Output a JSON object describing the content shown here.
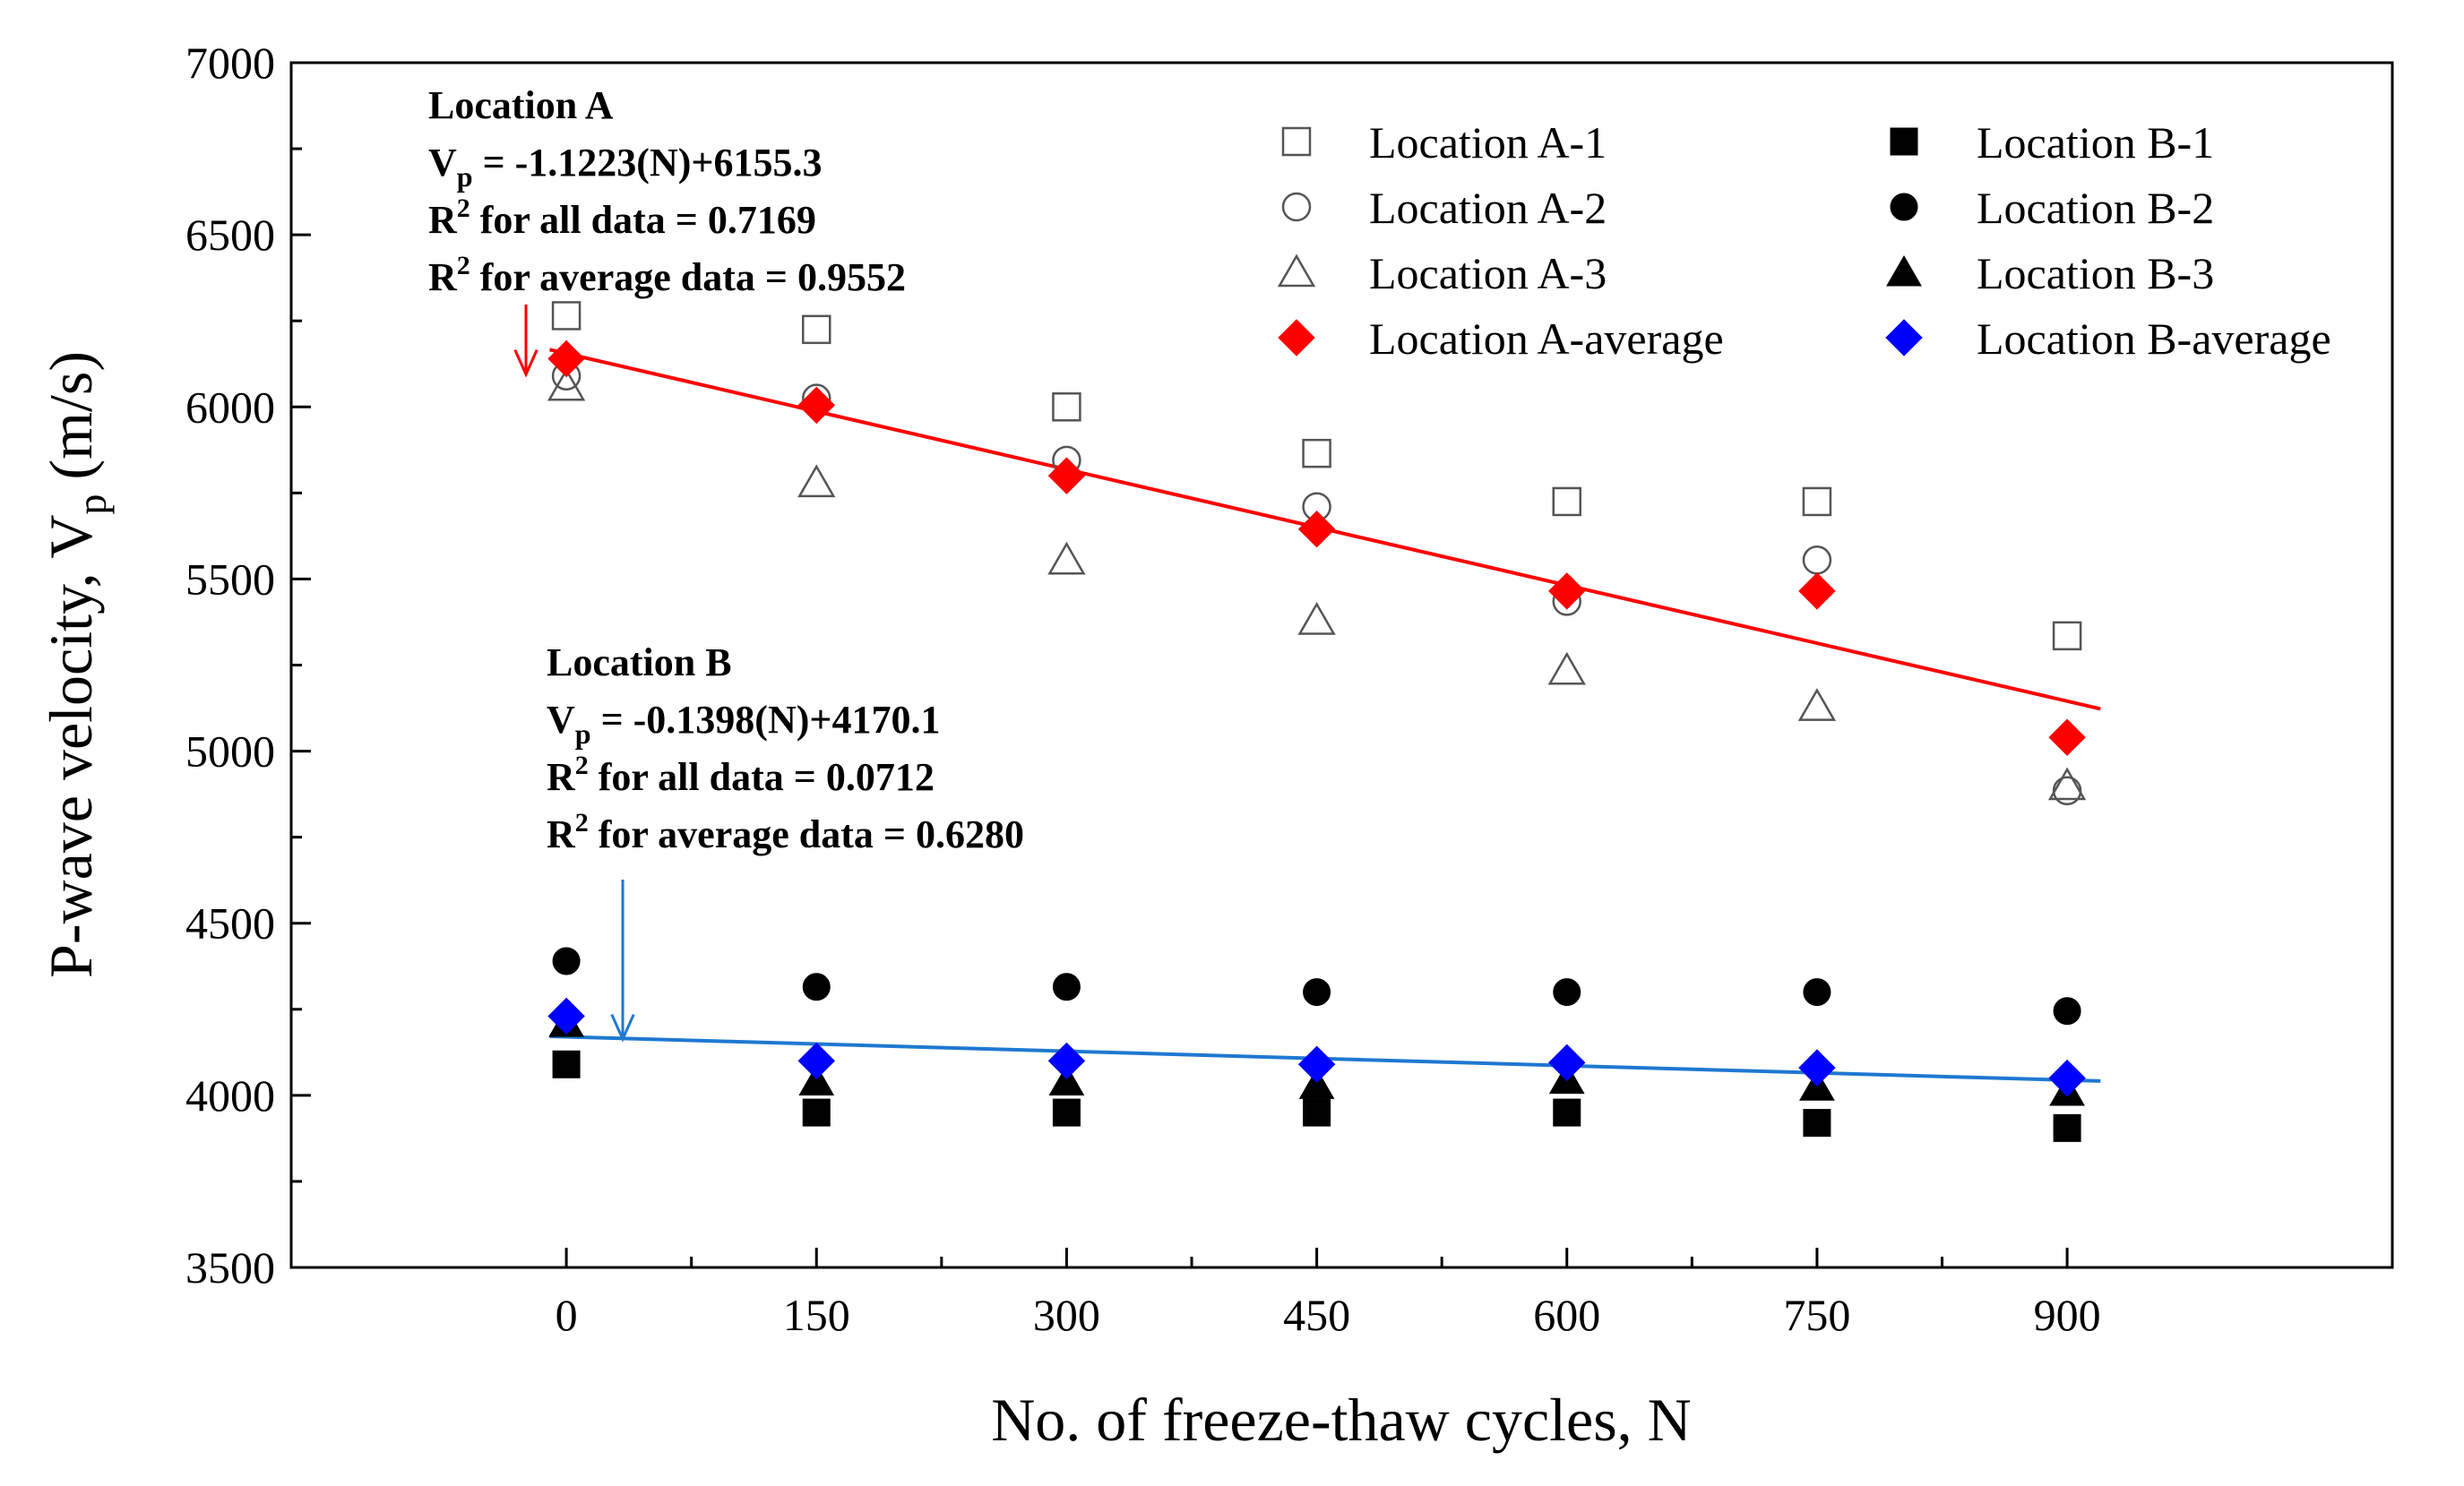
{
  "chart_data": {
    "type": "scatter",
    "xlabel": "No. of freeze-thaw cycles, N",
    "ylabel": "P-wave velocity, V",
    "ylabel_sub": "p",
    "ylabel_unit": "(m/s)",
    "xlim": [
      -165,
      1095
    ],
    "ylim": [
      3500,
      7000
    ],
    "xticks": [
      0,
      150,
      300,
      450,
      600,
      750,
      900
    ],
    "yticks": [
      3500,
      4000,
      4500,
      5000,
      5500,
      6000,
      6500,
      7000
    ],
    "x": [
      0,
      150,
      300,
      450,
      600,
      750,
      900
    ],
    "series": [
      {
        "name": "Location A-1",
        "marker": "square-open",
        "color": "#555555",
        "values": [
          6265,
          6225,
          6000,
          5865,
          5725,
          5725,
          5335
        ]
      },
      {
        "name": "Location A-2",
        "marker": "circle-open",
        "color": "#555555",
        "values": [
          6090,
          6025,
          5845,
          5710,
          5435,
          5555,
          4885
        ]
      },
      {
        "name": "Location A-3",
        "marker": "triangle-open",
        "color": "#555555",
        "values": [
          6060,
          5780,
          5555,
          5380,
          5235,
          5130,
          4900
        ]
      },
      {
        "name": "Location A-average",
        "marker": "diamond",
        "color": "#ff0000",
        "values": [
          6140,
          6005,
          5800,
          5645,
          5465,
          5465,
          5040
        ]
      },
      {
        "name": "Location B-1",
        "marker": "square",
        "color": "#000000",
        "values": [
          4090,
          3950,
          3950,
          3950,
          3950,
          3920,
          3905
        ]
      },
      {
        "name": "Location B-2",
        "marker": "circle",
        "color": "#000000",
        "values": [
          4390,
          4315,
          4315,
          4300,
          4300,
          4300,
          4245
        ]
      },
      {
        "name": "Location B-3",
        "marker": "triangle",
        "color": "#000000",
        "values": [
          4210,
          4040,
          4040,
          4030,
          4045,
          4025,
          4010
        ]
      },
      {
        "name": "Location B-average",
        "marker": "diamond",
        "color": "#0000ff",
        "values": [
          4230,
          4100,
          4100,
          4090,
          4095,
          4080,
          4050
        ]
      }
    ],
    "trendlines": [
      {
        "name": "Location A fit",
        "slope": -1.1223,
        "intercept": 6155.3,
        "x_range": [
          -10,
          920
        ],
        "color": "#ff0000"
      },
      {
        "name": "Location B fit",
        "slope": -0.1398,
        "intercept": 4170.1,
        "x_range": [
          -10,
          920
        ],
        "color": "#1f78d1"
      }
    ],
    "annotations": {
      "a": {
        "title": "Location A",
        "eq_prefix": "V",
        "eq_sub": "p",
        "eq_rest": " = -1.1223(N)+6155.3",
        "r2_all_pre": "R",
        "r2_all_sup": "2",
        "r2_all_rest": " for all data = 0.7169",
        "r2_avg_pre": "R",
        "r2_avg_sup": "2",
        "r2_avg_rest": " for average data = 0.9552",
        "arrow_color": "#ff0000"
      },
      "b": {
        "title": "Location B",
        "eq_prefix": "V",
        "eq_sub": "p",
        "eq_rest": " = -0.1398(N)+4170.1",
        "r2_all_pre": "R",
        "r2_all_sup": "2",
        "r2_all_rest": " for all data = 0.0712",
        "r2_avg_pre": "R",
        "r2_avg_sup": "2",
        "r2_avg_rest": " for average data = 0.6280",
        "arrow_color": "#1f78d1"
      }
    }
  }
}
